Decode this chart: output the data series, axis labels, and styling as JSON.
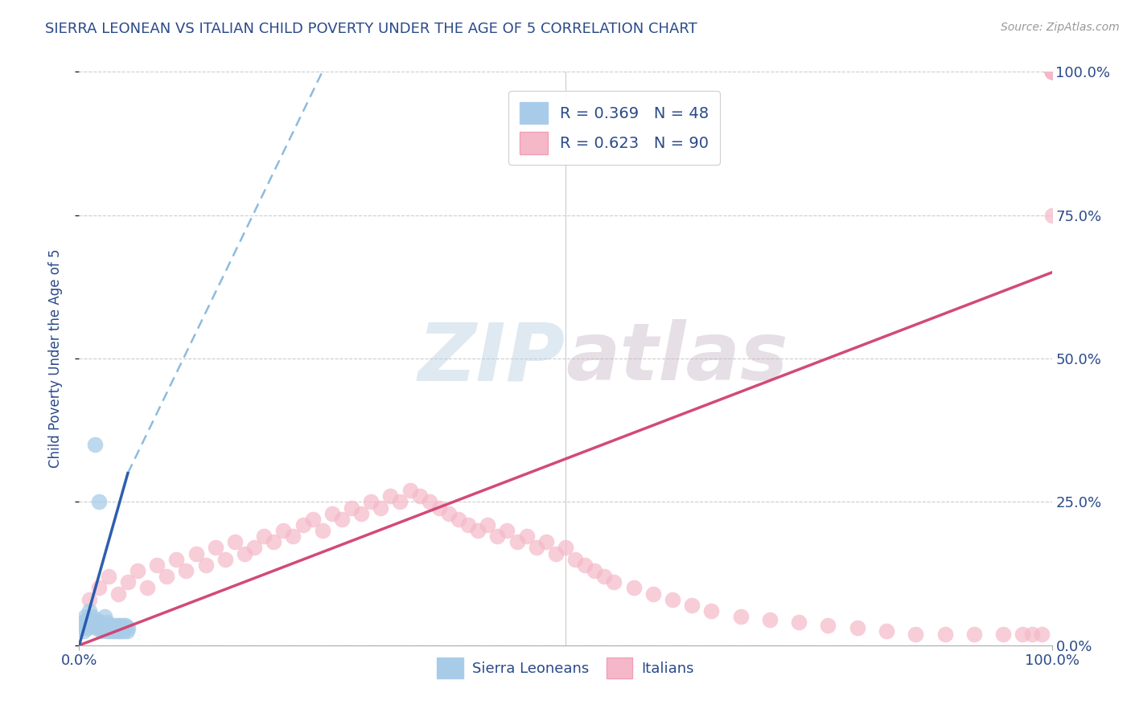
{
  "title": "SIERRA LEONEAN VS ITALIAN CHILD POVERTY UNDER THE AGE OF 5 CORRELATION CHART",
  "source": "Source: ZipAtlas.com",
  "ylabel": "Child Poverty Under the Age of 5",
  "watermark": "ZIPatlas",
  "legend_r1": "R = 0.369",
  "legend_n1": "N = 48",
  "legend_r2": "R = 0.623",
  "legend_n2": "N = 90",
  "sl_color": "#a8cce8",
  "it_color": "#f5b8c8",
  "sl_trend_color": "#2255aa",
  "sl_trend_dash_color": "#7ab0d8",
  "it_trend_color": "#d04070",
  "title_color": "#2a4a8a",
  "axis_label_color": "#2a4a8a",
  "tick_color": "#2a4a8a",
  "legend_text_color": "#2a4a8a",
  "watermark_color": "#c5d8ea",
  "background_color": "#ffffff",
  "xlim": [
    0,
    100
  ],
  "ylim": [
    0,
    100
  ],
  "ytick_values": [
    0,
    25,
    50,
    75,
    100
  ],
  "ytick_labels": [
    "0.0%",
    "25.0%",
    "50.0%",
    "75.0%",
    "100.0%"
  ],
  "xtick_labels": [
    "0.0%",
    "100.0%"
  ],
  "sl_scatter_x": [
    0.3,
    0.4,
    0.5,
    0.6,
    0.7,
    0.8,
    0.9,
    1.0,
    1.1,
    1.2,
    1.3,
    1.4,
    1.5,
    1.6,
    1.7,
    1.8,
    1.9,
    2.0,
    2.1,
    2.2,
    2.3,
    2.4,
    2.5,
    2.6,
    2.7,
    2.8,
    2.9,
    3.0,
    3.1,
    3.2,
    3.3,
    3.4,
    3.5,
    3.6,
    3.7,
    3.8,
    3.9,
    4.0,
    4.1,
    4.2,
    4.3,
    4.4,
    4.5,
    4.6,
    4.7,
    4.8,
    4.9,
    5.0
  ],
  "sl_scatter_y": [
    3.0,
    4.0,
    2.5,
    5.0,
    3.5,
    4.5,
    3.0,
    6.0,
    4.0,
    3.5,
    5.0,
    3.5,
    4.0,
    35.0,
    3.0,
    4.5,
    3.5,
    25.0,
    3.0,
    4.0,
    2.5,
    3.5,
    3.0,
    5.0,
    3.5,
    2.5,
    4.0,
    3.5,
    2.5,
    3.0,
    3.5,
    2.5,
    3.0,
    3.5,
    2.5,
    3.0,
    3.5,
    2.5,
    3.0,
    3.5,
    2.5,
    3.0,
    3.5,
    2.5,
    3.0,
    3.5,
    2.5,
    3.0
  ],
  "it_scatter_x": [
    1.0,
    2.0,
    3.0,
    4.0,
    5.0,
    6.0,
    7.0,
    8.0,
    9.0,
    10.0,
    11.0,
    12.0,
    13.0,
    14.0,
    15.0,
    16.0,
    17.0,
    18.0,
    19.0,
    20.0,
    21.0,
    22.0,
    23.0,
    24.0,
    25.0,
    26.0,
    27.0,
    28.0,
    29.0,
    30.0,
    31.0,
    32.0,
    33.0,
    34.0,
    35.0,
    36.0,
    37.0,
    38.0,
    39.0,
    40.0,
    41.0,
    42.0,
    43.0,
    44.0,
    45.0,
    46.0,
    47.0,
    48.0,
    49.0,
    50.0,
    51.0,
    52.0,
    53.0,
    54.0,
    55.0,
    57.0,
    59.0,
    61.0,
    63.0,
    65.0,
    68.0,
    71.0,
    74.0,
    77.0,
    80.0,
    83.0,
    86.0,
    89.0,
    92.0,
    95.0,
    97.0,
    98.0,
    99.0,
    100.0,
    100.0,
    100.0,
    100.0,
    100.0,
    100.0,
    100.0,
    100.0,
    100.0,
    100.0,
    100.0,
    100.0,
    100.0,
    100.0,
    100.0,
    100.0,
    100.0
  ],
  "it_scatter_y": [
    8.0,
    10.0,
    12.0,
    9.0,
    11.0,
    13.0,
    10.0,
    14.0,
    12.0,
    15.0,
    13.0,
    16.0,
    14.0,
    17.0,
    15.0,
    18.0,
    16.0,
    17.0,
    19.0,
    18.0,
    20.0,
    19.0,
    21.0,
    22.0,
    20.0,
    23.0,
    22.0,
    24.0,
    23.0,
    25.0,
    24.0,
    26.0,
    25.0,
    27.0,
    26.0,
    25.0,
    24.0,
    23.0,
    22.0,
    21.0,
    20.0,
    21.0,
    19.0,
    20.0,
    18.0,
    19.0,
    17.0,
    18.0,
    16.0,
    17.0,
    15.0,
    14.0,
    13.0,
    12.0,
    11.0,
    10.0,
    9.0,
    8.0,
    7.0,
    6.0,
    5.0,
    4.5,
    4.0,
    3.5,
    3.0,
    2.5,
    2.0,
    2.0,
    2.0,
    2.0,
    2.0,
    2.0,
    2.0,
    100.0,
    100.0,
    100.0,
    100.0,
    100.0,
    100.0,
    100.0,
    100.0,
    100.0,
    75.0,
    100.0,
    100.0,
    100.0,
    100.0,
    100.0,
    100.0,
    100.0
  ],
  "sl_trend_x0": 0.0,
  "sl_trend_y0": 0.0,
  "sl_trend_x1": 5.0,
  "sl_trend_y1": 30.0,
  "sl_dash_x0": 5.0,
  "sl_dash_y0": 30.0,
  "sl_dash_x1": 25.0,
  "sl_dash_y1": 100.0,
  "it_trend_x0": 0.0,
  "it_trend_y0": 0.0,
  "it_trend_x1": 100.0,
  "it_trend_y1": 65.0
}
